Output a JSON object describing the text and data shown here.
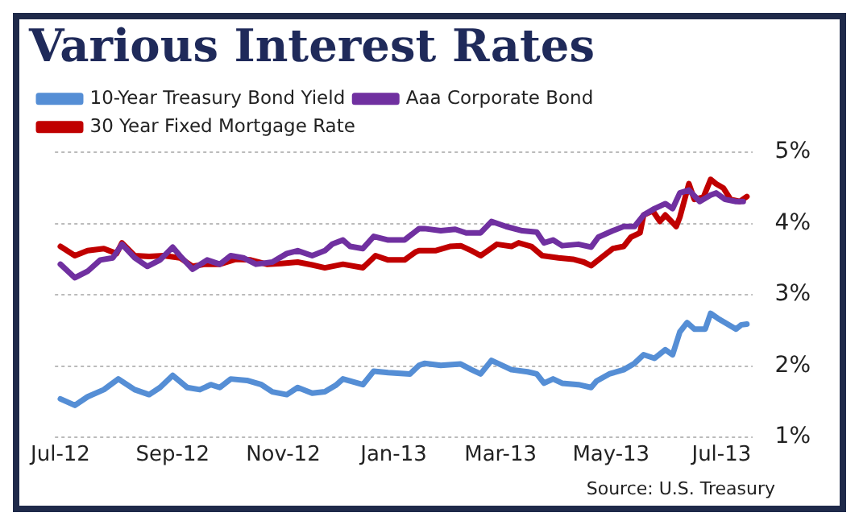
{
  "chart_data": {
    "type": "line",
    "title": "Various Interest Rates",
    "annotations": [
      "Source: U.S. Treasury"
    ],
    "xlim": [
      "2012-06-28",
      "2013-07-18"
    ],
    "xticks": [
      {
        "value": "2012-07-01",
        "label": "Jul-12"
      },
      {
        "value": "2012-09-01",
        "label": "Sep-12"
      },
      {
        "value": "2012-11-01",
        "label": "Nov-12"
      },
      {
        "value": "2013-01-01",
        "label": "Jan-13"
      },
      {
        "value": "2013-03-01",
        "label": "Mar-13"
      },
      {
        "value": "2013-05-01",
        "label": "May-13"
      },
      {
        "value": "2013-07-01",
        "label": "Jul-13"
      }
    ],
    "ylim": [
      1,
      5
    ],
    "yticks": [
      {
        "value": 1,
        "label": "1%"
      },
      {
        "value": 2,
        "label": "2%"
      },
      {
        "value": 3,
        "label": "3%"
      },
      {
        "value": 4,
        "label": "4%"
      },
      {
        "value": 5,
        "label": "5%"
      }
    ],
    "grid": "y",
    "legend": "top left",
    "marker": "none",
    "line_style": "solid",
    "series": [
      {
        "name": "10-Year Treasury Bond Yield",
        "color": "#558ed5",
        "x": [
          "2012-07-01",
          "2012-07-09",
          "2012-07-16",
          "2012-07-25",
          "2012-08-02",
          "2012-08-11",
          "2012-08-19",
          "2012-08-25",
          "2012-09-01",
          "2012-09-09",
          "2012-09-16",
          "2012-09-22",
          "2012-09-27",
          "2012-10-03",
          "2012-10-12",
          "2012-10-20",
          "2012-10-26",
          "2012-11-03",
          "2012-11-09",
          "2012-11-17",
          "2012-11-24",
          "2012-11-30",
          "2012-12-04",
          "2012-12-15",
          "2012-12-21",
          "2012-12-29",
          "2013-01-10",
          "2013-01-15",
          "2013-01-18",
          "2013-01-27",
          "2013-02-07",
          "2013-02-13",
          "2013-02-18",
          "2013-02-24",
          "2013-03-02",
          "2013-03-07",
          "2013-03-16",
          "2013-03-21",
          "2013-03-25",
          "2013-03-30",
          "2013-04-04",
          "2013-04-13",
          "2013-04-20",
          "2013-04-23",
          "2013-04-30",
          "2013-05-08",
          "2013-05-14",
          "2013-05-19",
          "2013-05-25",
          "2013-05-31",
          "2013-06-04",
          "2013-06-08",
          "2013-06-12",
          "2013-06-16",
          "2013-06-22",
          "2013-06-25",
          "2013-06-29",
          "2013-07-03",
          "2013-07-09",
          "2013-07-12",
          "2013-07-15"
        ],
        "values": [
          1.54,
          1.45,
          1.57,
          1.67,
          1.82,
          1.67,
          1.6,
          1.7,
          1.87,
          1.7,
          1.67,
          1.74,
          1.7,
          1.82,
          1.8,
          1.74,
          1.64,
          1.6,
          1.7,
          1.62,
          1.64,
          1.73,
          1.82,
          1.74,
          1.93,
          1.91,
          1.89,
          2.01,
          2.04,
          2.01,
          2.03,
          1.95,
          1.89,
          2.08,
          2.01,
          1.95,
          1.92,
          1.89,
          1.76,
          1.82,
          1.76,
          1.74,
          1.7,
          1.79,
          1.89,
          1.95,
          2.04,
          2.16,
          2.11,
          2.23,
          2.16,
          2.48,
          2.61,
          2.52,
          2.52,
          2.74,
          2.67,
          2.61,
          2.52,
          2.58,
          2.59
        ]
      },
      {
        "name": "Aaa Corporate Bond",
        "color": "#7030a0",
        "x": [
          "2012-07-01",
          "2012-07-09",
          "2012-07-16",
          "2012-07-23",
          "2012-07-30",
          "2012-08-04",
          "2012-08-11",
          "2012-08-18",
          "2012-08-25",
          "2012-09-01",
          "2012-09-05",
          "2012-09-12",
          "2012-09-20",
          "2012-09-27",
          "2012-10-03",
          "2012-10-10",
          "2012-10-17",
          "2012-10-26",
          "2012-11-03",
          "2012-11-09",
          "2012-11-17",
          "2012-11-24",
          "2012-11-28",
          "2012-12-04",
          "2012-12-08",
          "2012-12-15",
          "2012-12-21",
          "2012-12-29",
          "2013-01-07",
          "2013-01-15",
          "2013-01-18",
          "2013-01-27",
          "2013-02-04",
          "2013-02-10",
          "2013-02-18",
          "2013-02-24",
          "2013-03-04",
          "2013-03-13",
          "2013-03-21",
          "2013-03-25",
          "2013-03-30",
          "2013-04-04",
          "2013-04-13",
          "2013-04-20",
          "2013-04-24",
          "2013-05-02",
          "2013-05-08",
          "2013-05-14",
          "2013-05-19",
          "2013-05-25",
          "2013-05-31",
          "2013-06-04",
          "2013-06-08",
          "2013-06-13",
          "2013-06-19",
          "2013-06-25",
          "2013-06-28",
          "2013-07-03",
          "2013-07-09",
          "2013-07-13"
        ],
        "values": [
          3.43,
          3.24,
          3.33,
          3.49,
          3.52,
          3.71,
          3.52,
          3.4,
          3.49,
          3.67,
          3.55,
          3.36,
          3.49,
          3.43,
          3.55,
          3.52,
          3.43,
          3.46,
          3.58,
          3.62,
          3.55,
          3.62,
          3.71,
          3.77,
          3.68,
          3.65,
          3.82,
          3.77,
          3.77,
          3.93,
          3.93,
          3.9,
          3.92,
          3.87,
          3.87,
          4.03,
          3.96,
          3.9,
          3.88,
          3.73,
          3.77,
          3.69,
          3.71,
          3.67,
          3.81,
          3.9,
          3.96,
          3.96,
          4.12,
          4.21,
          4.28,
          4.21,
          4.43,
          4.47,
          4.31,
          4.4,
          4.43,
          4.34,
          4.31,
          4.31
        ]
      },
      {
        "name": "30 Year Fixed Mortgage Rate",
        "color": "#c00000",
        "x": [
          "2012-07-01",
          "2012-07-09",
          "2012-07-16",
          "2012-07-25",
          "2012-08-01",
          "2012-08-04",
          "2012-08-11",
          "2012-08-19",
          "2012-08-27",
          "2012-09-05",
          "2012-09-12",
          "2012-09-19",
          "2012-09-27",
          "2012-10-06",
          "2012-10-14",
          "2012-10-23",
          "2012-10-31",
          "2012-11-09",
          "2012-11-17",
          "2012-11-24",
          "2012-12-04",
          "2012-12-15",
          "2012-12-22",
          "2012-12-29",
          "2013-01-07",
          "2013-01-13",
          "2013-01-15",
          "2013-01-24",
          "2013-02-01",
          "2013-02-07",
          "2013-02-13",
          "2013-02-18",
          "2013-02-27",
          "2013-03-07",
          "2013-03-11",
          "2013-03-18",
          "2013-03-24",
          "2013-04-02",
          "2013-04-10",
          "2013-04-16",
          "2013-04-20",
          "2013-04-27",
          "2013-05-02",
          "2013-05-08",
          "2013-05-12",
          "2013-05-17",
          "2013-05-19",
          "2013-05-24",
          "2013-05-28",
          "2013-05-31",
          "2013-06-06",
          "2013-06-08",
          "2013-06-13",
          "2013-06-16",
          "2013-06-21",
          "2013-06-25",
          "2013-06-28",
          "2013-07-02",
          "2013-07-06",
          "2013-07-11",
          "2013-07-15"
        ],
        "values": [
          3.68,
          3.55,
          3.62,
          3.65,
          3.58,
          3.73,
          3.55,
          3.54,
          3.55,
          3.52,
          3.4,
          3.43,
          3.43,
          3.5,
          3.49,
          3.43,
          3.44,
          3.46,
          3.42,
          3.38,
          3.43,
          3.38,
          3.55,
          3.49,
          3.49,
          3.6,
          3.62,
          3.62,
          3.68,
          3.69,
          3.62,
          3.55,
          3.71,
          3.68,
          3.73,
          3.68,
          3.55,
          3.52,
          3.5,
          3.46,
          3.41,
          3.55,
          3.65,
          3.68,
          3.81,
          3.87,
          4.12,
          4.18,
          4.03,
          4.12,
          3.96,
          4.09,
          4.56,
          4.34,
          4.37,
          4.62,
          4.56,
          4.5,
          4.34,
          4.31,
          4.38
        ]
      }
    ]
  }
}
